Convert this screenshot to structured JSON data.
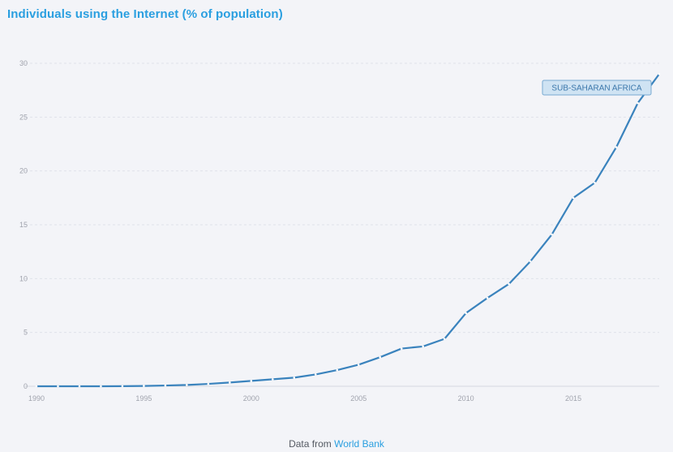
{
  "chart_data": {
    "type": "line",
    "title": "Individuals using the Internet (% of population)",
    "xlabel": "",
    "ylabel": "",
    "xlim": [
      1990,
      2019
    ],
    "ylim": [
      0,
      30
    ],
    "x_ticks": [
      "1990",
      "1995",
      "2000",
      "2005",
      "2010",
      "2015"
    ],
    "y_ticks": [
      "0",
      "5",
      "10",
      "15",
      "20",
      "25",
      "30"
    ],
    "grid": true,
    "legend_placement": "top-right",
    "series": [
      {
        "name": "SUB-SAHARAN AFRICA",
        "color": "#3a83bd",
        "x": [
          1990,
          1991,
          1992,
          1993,
          1994,
          1995,
          1996,
          1997,
          1998,
          1999,
          2000,
          2001,
          2002,
          2003,
          2004,
          2005,
          2006,
          2007,
          2008,
          2009,
          2010,
          2011,
          2012,
          2013,
          2014,
          2015,
          2016,
          2017,
          2018,
          2019
        ],
        "values": [
          0,
          0,
          0,
          0,
          0.01,
          0.03,
          0.07,
          0.12,
          0.22,
          0.35,
          0.5,
          0.65,
          0.8,
          1.1,
          1.5,
          2.0,
          2.7,
          3.5,
          3.7,
          4.4,
          6.8,
          8.2,
          9.5,
          11.6,
          14.1,
          17.5,
          18.9,
          22.2,
          26.3,
          29.0
        ]
      }
    ]
  },
  "footer": {
    "prefix": "Data from",
    "source_link": "World Bank"
  }
}
